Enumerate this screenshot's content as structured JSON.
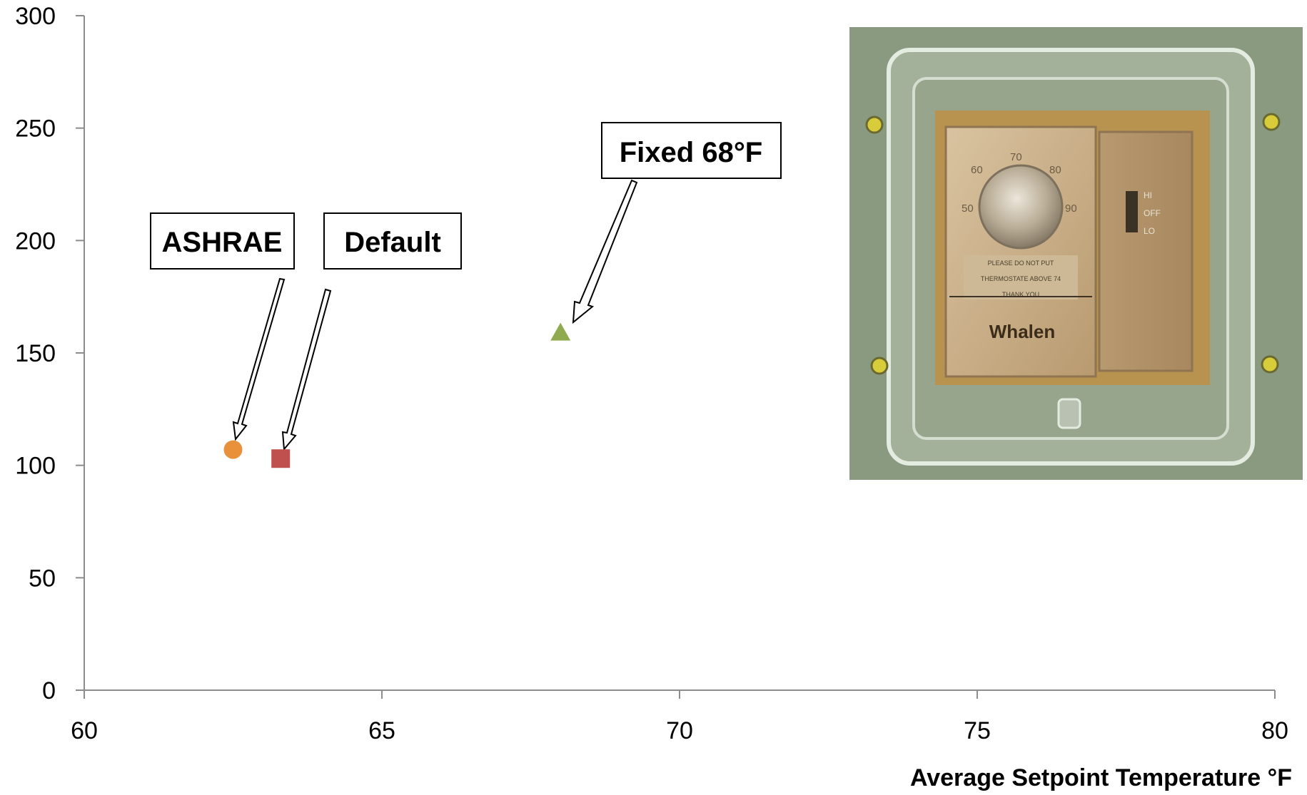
{
  "chart_data": {
    "type": "scatter",
    "title": "",
    "xlabel": "Average Setpoint Temperature °F",
    "ylabel": "",
    "xlim": [
      60,
      80
    ],
    "ylim": [
      0,
      300
    ],
    "xticks": [
      "60",
      "65",
      "70",
      "75",
      "80"
    ],
    "yticks": [
      "0",
      "50",
      "100",
      "150",
      "200",
      "250",
      "300"
    ],
    "grid": false,
    "series": [
      {
        "name": "ASHRAE",
        "marker": "circle",
        "color": "#E8913A",
        "x": [
          62.5
        ],
        "y": [
          107
        ]
      },
      {
        "name": "Default",
        "marker": "square",
        "color": "#C0504D",
        "x": [
          63.3
        ],
        "y": [
          103
        ]
      },
      {
        "name": "Fixed 68°F",
        "marker": "triangle",
        "color": "#8FAA4F",
        "x": [
          68
        ],
        "y": [
          159
        ]
      }
    ]
  },
  "inset_photo": {
    "dial_numbers": [
      "50",
      "60",
      "70",
      "80",
      "90"
    ],
    "switch_labels": [
      "HI",
      "OFF",
      "LO"
    ],
    "notice_lines": [
      "PLEASE DO NOT PUT",
      "THERMOSTATE ABOVE 74",
      "THANK YOU"
    ],
    "brand": "Whalen",
    "colors": {
      "wall": "#8A9A80",
      "plate": "#C9AE86",
      "brass": "#B8924F"
    }
  }
}
